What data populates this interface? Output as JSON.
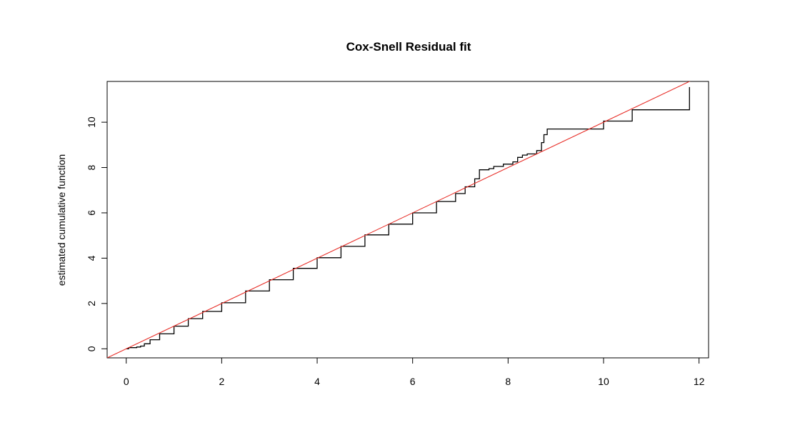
{
  "chart_data": {
    "type": "line",
    "title": "Cox-Snell Residual fit",
    "xlabel": "",
    "ylabel": "estimated cumulative function",
    "xlim": [
      -0.4,
      12.2
    ],
    "ylim": [
      -0.4,
      11.8
    ],
    "x_ticks": [
      0,
      2,
      4,
      6,
      8,
      10,
      12
    ],
    "y_ticks": [
      0,
      2,
      4,
      6,
      8,
      10
    ],
    "grid": false,
    "series": [
      {
        "kind": "step",
        "color": "#000000",
        "points": [
          [
            0.0,
            0.0
          ],
          [
            0.05,
            0.05
          ],
          [
            0.15,
            0.05
          ],
          [
            0.22,
            0.08
          ],
          [
            0.3,
            0.12
          ],
          [
            0.38,
            0.22
          ],
          [
            0.5,
            0.4
          ],
          [
            0.7,
            0.66
          ],
          [
            1.0,
            1.0
          ],
          [
            1.3,
            1.33
          ],
          [
            1.6,
            1.65
          ],
          [
            2.0,
            2.03
          ],
          [
            2.5,
            2.55
          ],
          [
            3.0,
            3.05
          ],
          [
            3.5,
            3.55
          ],
          [
            4.0,
            4.02
          ],
          [
            4.5,
            4.52
          ],
          [
            5.0,
            5.03
          ],
          [
            5.5,
            5.5
          ],
          [
            6.0,
            6.0
          ],
          [
            6.5,
            6.5
          ],
          [
            6.9,
            6.85
          ],
          [
            7.1,
            7.15
          ],
          [
            7.3,
            7.5
          ],
          [
            7.4,
            7.9
          ],
          [
            7.6,
            7.95
          ],
          [
            7.7,
            8.05
          ],
          [
            7.9,
            8.15
          ],
          [
            8.1,
            8.25
          ],
          [
            8.2,
            8.45
          ],
          [
            8.3,
            8.55
          ],
          [
            8.4,
            8.6
          ],
          [
            8.6,
            8.75
          ],
          [
            8.7,
            9.1
          ],
          [
            8.75,
            9.45
          ],
          [
            8.82,
            9.7
          ],
          [
            9.0,
            9.7
          ],
          [
            10.0,
            9.7
          ],
          [
            10.0,
            10.05
          ],
          [
            10.6,
            10.05
          ],
          [
            10.6,
            10.55
          ],
          [
            11.8,
            10.55
          ],
          [
            11.8,
            11.55
          ]
        ]
      },
      {
        "kind": "reference-line",
        "color": "#e8322c",
        "intercept": 0.0,
        "slope": 1.0
      }
    ]
  }
}
